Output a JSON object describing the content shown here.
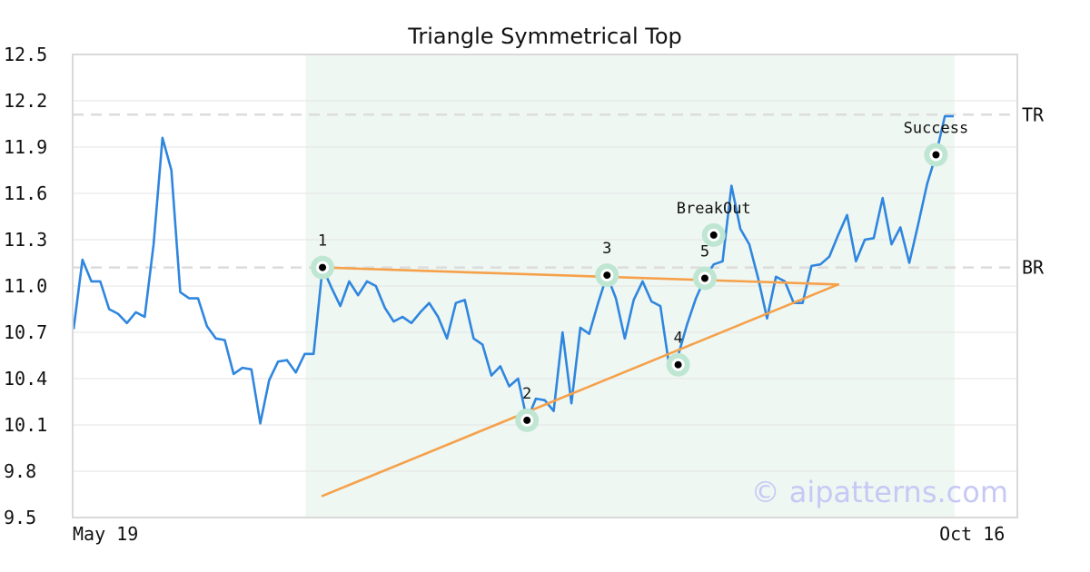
{
  "chart_data": {
    "type": "line",
    "title": "Triangle Symmetrical Top",
    "xlabel": "",
    "ylabel": "",
    "ylim": [
      9.5,
      12.5
    ],
    "y_ticks": [
      "12.5",
      "12.2",
      "11.9",
      "11.6",
      "11.3",
      "11.0",
      "10.7",
      "10.4",
      "10.1",
      "9.8",
      "9.5"
    ],
    "x_tick_labels": [
      {
        "index": 0,
        "label": "May 19"
      },
      {
        "index": 98,
        "label": "Oct 16"
      }
    ],
    "grid": "horizontal",
    "series": [
      {
        "color": "#2f86de",
        "values": [
          10.72,
          11.17,
          11.03,
          11.03,
          10.85,
          10.82,
          10.76,
          10.83,
          10.8,
          11.27,
          11.96,
          11.75,
          10.96,
          10.92,
          10.92,
          10.74,
          10.66,
          10.65,
          10.43,
          10.47,
          10.46,
          10.11,
          10.39,
          10.51,
          10.52,
          10.44,
          10.56,
          10.56,
          11.12,
          10.99,
          10.87,
          11.03,
          10.94,
          11.03,
          11.0,
          10.86,
          10.77,
          10.8,
          10.76,
          10.83,
          10.89,
          10.8,
          10.66,
          10.89,
          10.91,
          10.66,
          10.62,
          10.42,
          10.48,
          10.35,
          10.4,
          10.13,
          10.27,
          10.26,
          10.19,
          10.7,
          10.24,
          10.73,
          10.69,
          10.89,
          11.07,
          10.92,
          10.66,
          10.91,
          11.03,
          10.9,
          10.87,
          10.48,
          10.55,
          10.75,
          10.92,
          11.05,
          11.14,
          11.16,
          11.65,
          11.37,
          11.27,
          11.05,
          10.79,
          11.06,
          11.03,
          10.89,
          10.89,
          11.13,
          11.14,
          11.19,
          11.33,
          11.46,
          11.16,
          11.3,
          11.31,
          11.57,
          11.27,
          11.38,
          11.15,
          11.4,
          11.66,
          11.85,
          12.1,
          12.1
        ]
      }
    ],
    "shaded_region": {
      "from_index": 26,
      "to_index": 99,
      "color": "#eff7f3"
    },
    "reference_lines": [
      {
        "label": "TR",
        "y": 12.11
      },
      {
        "label": "BR",
        "y": 11.12
      }
    ],
    "trend_lines": [
      {
        "from": {
          "index": 28,
          "y": 11.12
        },
        "to": {
          "index": 86,
          "y": 11.01
        },
        "color": "#f5a14a"
      },
      {
        "from": {
          "index": 28,
          "y": 9.64
        },
        "to": {
          "index": 86,
          "y": 11.01
        },
        "color": "#f5a14a"
      }
    ],
    "annotations": [
      {
        "label": "1",
        "index": 28,
        "y": 11.12
      },
      {
        "label": "2",
        "index": 51,
        "y": 10.13
      },
      {
        "label": "3",
        "index": 60,
        "y": 11.07
      },
      {
        "label": "4",
        "index": 68,
        "y": 10.49
      },
      {
        "label": "5",
        "index": 71,
        "y": 11.05
      },
      {
        "label": "BreakOut",
        "index": 72,
        "y": 11.33
      },
      {
        "label": "Success",
        "index": 97,
        "y": 11.85
      }
    ],
    "watermark": "© aipatterns.com"
  }
}
